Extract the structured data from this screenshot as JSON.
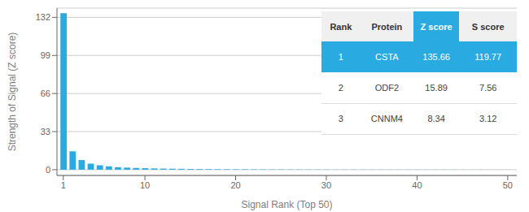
{
  "chart_data": {
    "type": "bar",
    "xlabel": "Signal Rank (Top 50)",
    "ylabel": "Strength of Signal (Z score)",
    "x": [
      1,
      2,
      3,
      4,
      5,
      6,
      7,
      8,
      9,
      10,
      11,
      12,
      13,
      14,
      15,
      16,
      17,
      18,
      19,
      20,
      21,
      22,
      23,
      24,
      25,
      26,
      27,
      28,
      29,
      30,
      31,
      32,
      33,
      34,
      35,
      36,
      37,
      38,
      39,
      40,
      41,
      42,
      43,
      44,
      45,
      46,
      47,
      48,
      49,
      50
    ],
    "values": [
      135.66,
      15.89,
      8.34,
      5.2,
      3.8,
      2.9,
      2.1,
      1.8,
      1.5,
      1.3,
      1.1,
      0.95,
      0.85,
      0.75,
      0.65,
      0.58,
      0.52,
      0.47,
      0.42,
      0.38,
      0.35,
      0.32,
      0.29,
      0.26,
      0.24,
      0.22,
      0.2,
      0.18,
      0.17,
      0.16,
      0.15,
      0.14,
      0.13,
      0.12,
      0.11,
      0.1,
      0.09,
      0.09,
      0.08,
      0.08,
      0.07,
      0.07,
      0.06,
      0.06,
      0.05,
      0.05,
      0.05,
      0.04,
      0.04,
      0.04
    ],
    "color": "#29ABE2",
    "xlim": [
      0.3,
      51
    ],
    "ylim": [
      -5,
      140
    ],
    "xticks": [
      1,
      10,
      20,
      30,
      40,
      50
    ],
    "yticks": [
      0,
      33,
      66,
      99,
      132
    ],
    "grid": true,
    "table": {
      "headers": [
        "Rank",
        "Protein",
        "Z score",
        "S score"
      ],
      "rows": [
        [
          "1",
          "CSTA",
          "135.66",
          "119.77"
        ],
        [
          "2",
          "ODF2",
          "15.89",
          "7.56"
        ],
        [
          "3",
          "CNNM4",
          "8.34",
          "3.12"
        ]
      ]
    }
  }
}
